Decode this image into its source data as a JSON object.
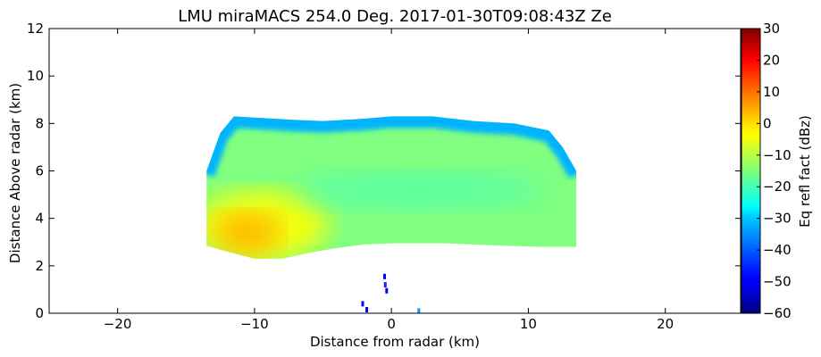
{
  "chart_data": {
    "type": "heatmap",
    "title": "LMU miraMACS 254.0 Deg. 2017-01-30T09:08:43Z  Ze",
    "xlabel": "Distance from radar (km)",
    "ylabel": "Distance Above radar  (km)",
    "xlim": [
      -25,
      25.5
    ],
    "ylim": [
      0,
      12
    ],
    "x_ticks": [
      -20,
      -10,
      0,
      10,
      20
    ],
    "x_tick_labels": [
      "−20",
      "−10",
      "0",
      "10",
      "20"
    ],
    "y_ticks": [
      0,
      2,
      4,
      6,
      8,
      10,
      12
    ],
    "y_tick_labels": [
      "0",
      "2",
      "4",
      "6",
      "8",
      "10",
      "12"
    ],
    "colorbar": {
      "label": "Eq refl fact (dBz)",
      "range": [
        -60,
        30
      ],
      "ticks": [
        30,
        20,
        10,
        0,
        -10,
        -20,
        -30,
        -40,
        -50,
        -60
      ],
      "tick_labels": [
        "30",
        "20",
        "10",
        "0",
        "−10",
        "−20",
        "−30",
        "−40",
        "−50",
        "−60"
      ],
      "colormap": "jet"
    },
    "echo_region": {
      "x_range": [
        -13.5,
        13.5
      ],
      "top_height": [
        [
          -13.5,
          6.0
        ],
        [
          -12.5,
          7.6
        ],
        [
          -11.5,
          8.3
        ],
        [
          -10,
          8.25
        ],
        [
          -7,
          8.15
        ],
        [
          -5,
          8.1
        ],
        [
          -2,
          8.2
        ],
        [
          0,
          8.3
        ],
        [
          3,
          8.3
        ],
        [
          6,
          8.1
        ],
        [
          9,
          8.0
        ],
        [
          11.5,
          7.7
        ],
        [
          12.5,
          7.0
        ],
        [
          13.5,
          6.0
        ]
      ],
      "base_height": [
        [
          -13.5,
          2.85
        ],
        [
          -12,
          2.6
        ],
        [
          -10,
          2.3
        ],
        [
          -8,
          2.3
        ],
        [
          -6,
          2.55
        ],
        [
          -4,
          2.75
        ],
        [
          -2,
          2.9
        ],
        [
          0,
          2.95
        ],
        [
          4,
          2.95
        ],
        [
          8,
          2.85
        ],
        [
          11,
          2.8
        ],
        [
          13.5,
          2.8
        ]
      ],
      "typical_dbz": -15,
      "core": {
        "x": -10.5,
        "y": 3.4,
        "dbz": 2
      },
      "upper_edge_dbz": -33
    },
    "clutter_points": [
      {
        "x": -0.5,
        "y": 1.55,
        "dbz": -50
      },
      {
        "x": -0.45,
        "y": 1.2,
        "dbz": -45
      },
      {
        "x": -0.35,
        "y": 0.95,
        "dbz": -50
      },
      {
        "x": -2.1,
        "y": 0.4,
        "dbz": -48
      },
      {
        "x": -1.8,
        "y": 0.15,
        "dbz": -50
      },
      {
        "x": 2.0,
        "y": 0.1,
        "dbz": -35
      }
    ]
  }
}
